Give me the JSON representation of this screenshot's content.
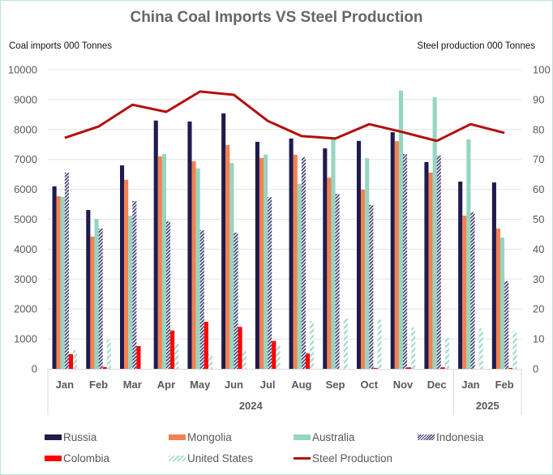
{
  "chart_data": {
    "type": "bar",
    "title": "China Coal Imports VS Steel Production",
    "ylabel_left": "Coal imports 000 Tonnes",
    "ylabel_right": "Steel production 000 Tonnes",
    "ylim_left": [
      0,
      10000
    ],
    "ylim_right": [
      0,
      100
    ],
    "yticks_left": [
      "0",
      "1000",
      "2000",
      "3000",
      "4000",
      "5000",
      "6000",
      "7000",
      "8000",
      "9000",
      "10000"
    ],
    "yticks_right": [
      "0",
      "10",
      "20",
      "30",
      "40",
      "50",
      "60",
      "70",
      "80",
      "90",
      "100"
    ],
    "grid": true,
    "categories": [
      "Jan",
      "Feb",
      "Mar",
      "Apr",
      "May",
      "Jun",
      "Jul",
      "Aug",
      "Sep",
      "Oct",
      "Nov",
      "Dec",
      "Jan",
      "Feb"
    ],
    "year_groups": [
      {
        "label": "2024",
        "count": 12
      },
      {
        "label": "2025",
        "count": 2
      }
    ],
    "series": [
      {
        "name": "Russia",
        "type": "bar",
        "axis": "left",
        "color": "#1f1b4d",
        "pattern": "solid",
        "values": [
          6100,
          5310,
          6800,
          8300,
          8270,
          8540,
          7590,
          7700,
          7370,
          7620,
          7910,
          6910,
          6260,
          6230
        ]
      },
      {
        "name": "Mongolia",
        "type": "bar",
        "axis": "left",
        "color": "#f4814f",
        "pattern": "solid",
        "values": [
          5770,
          4420,
          6320,
          7100,
          6940,
          7480,
          7050,
          7160,
          6390,
          5990,
          7610,
          6560,
          5120,
          4690
        ]
      },
      {
        "name": "Australia",
        "type": "bar",
        "axis": "left",
        "color": "#96d5c2",
        "pattern": "solid",
        "values": [
          5750,
          5010,
          5120,
          7180,
          6700,
          6880,
          7160,
          6180,
          7740,
          7040,
          9300,
          9080,
          7670,
          4390
        ]
      },
      {
        "name": "Indonesia",
        "type": "bar",
        "axis": "left",
        "color": "#3d3a6b",
        "pattern": "dark-hatch",
        "values": [
          6560,
          4690,
          5610,
          4930,
          4630,
          4550,
          5740,
          7070,
          5850,
          5480,
          7180,
          7130,
          5230,
          2930
        ]
      },
      {
        "name": "Colombia",
        "type": "bar",
        "axis": "left",
        "color": "#ff0000",
        "pattern": "solid",
        "values": [
          490,
          60,
          760,
          1280,
          1570,
          1400,
          930,
          510,
          0,
          30,
          50,
          50,
          0,
          30
        ]
      },
      {
        "name": "United States",
        "type": "bar",
        "axis": "left",
        "color": "#a8dcd0",
        "pattern": "light-hatch",
        "values": [
          620,
          970,
          0,
          870,
          490,
          590,
          790,
          1600,
          1690,
          1650,
          1380,
          1030,
          1350,
          1270
        ]
      },
      {
        "name": "Steel Production",
        "type": "line",
        "axis": "right",
        "color": "#b50d0d",
        "values": [
          77.2,
          81.0,
          88.3,
          85.9,
          92.7,
          91.6,
          82.9,
          77.8,
          77.0,
          81.8,
          79.1,
          76.2,
          81.8,
          78.9
        ]
      }
    ],
    "legend": "bottom"
  }
}
